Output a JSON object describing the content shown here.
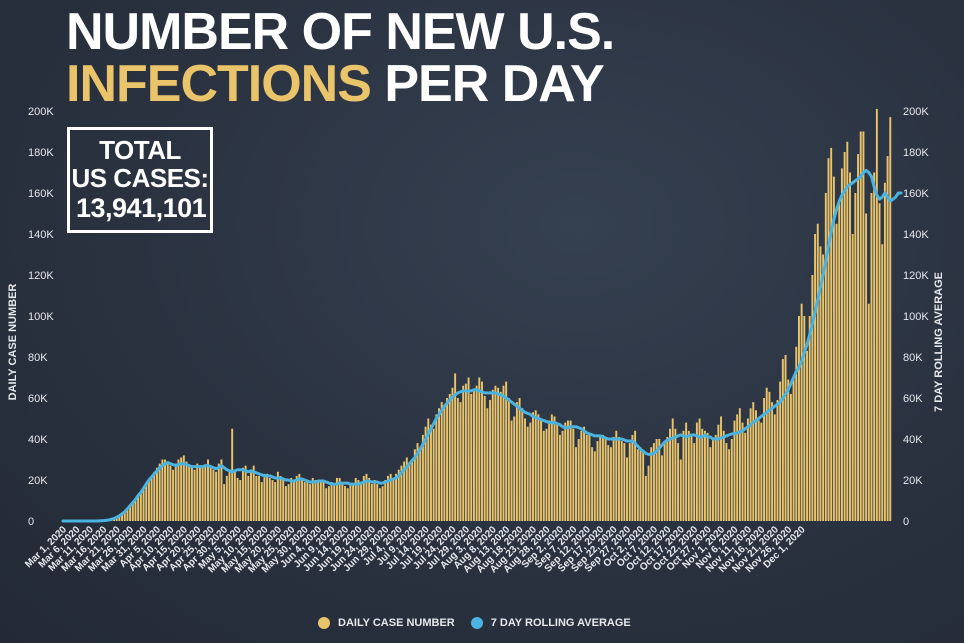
{
  "title": {
    "line1": "NUMBER OF NEW U.S.",
    "line2_highlight": "INFECTIONS",
    "line2_rest": " PER DAY"
  },
  "total_box": {
    "line1": "TOTAL",
    "line2": "US CASES:",
    "value": "13,941,101"
  },
  "colors": {
    "bar": "#e9c46a",
    "line": "#4bb3e0",
    "text": "#e6e8ec",
    "background": "#2a3240"
  },
  "chart_data": {
    "type": "bar",
    "ylabel": "DAILY CASE NUMBER",
    "y2label": "7 DAY ROLLING AVERAGE",
    "ylim": [
      0,
      200000
    ],
    "yticks": [
      "0",
      "20K",
      "40K",
      "60K",
      "80K",
      "100K",
      "120K",
      "140K",
      "160K",
      "180K",
      "200K"
    ],
    "xtick_labels": [
      "Mar 1, 2020",
      "Mar 6, 2020",
      "Mar 11, 2020",
      "Mar 16, 2020",
      "Mar 21, 2020",
      "Mar 26, 2020",
      "Mar 31, 2020",
      "Apr 5, 2020",
      "Apr 10, 2020",
      "Apr 15, 2020",
      "Apr 20, 2020",
      "Apr 25, 2020",
      "Apr 30, 2020",
      "May 5, 2020",
      "May 10, 2020",
      "May 15, 2020",
      "May 20, 2020",
      "May 25, 2020",
      "May 30, 2020",
      "Jun 4, 2020",
      "Jun 9, 2020",
      "Jun 14, 2020",
      "Jun 19, 2020",
      "Jun 24, 2020",
      "Jun 29, 2020",
      "Jul 4, 2020",
      "Jul 9, 2020",
      "Jul 14, 2020",
      "Jul 19, 2020",
      "Jul 24, 2020",
      "Jul 29, 2020",
      "Aug 3, 2020",
      "Aug 8, 2020",
      "Aug 13, 2020",
      "Aug 18, 2020",
      "Aug 23, 2020",
      "Aug 28, 2020",
      "Sep 2, 2020",
      "Sep 7, 2020",
      "Sep 12, 2020",
      "Sep 17, 2020",
      "Sep 22, 2020",
      "Sep 27, 2020",
      "Oct 2, 2020",
      "Oct 7, 2020",
      "Oct 12, 2020",
      "Oct 17, 2020",
      "Oct 22, 2020",
      "Oct 27, 2020",
      "Nov 1, 2020",
      "Nov 6, 2020",
      "Nov 11, 2020",
      "Nov 16, 2020",
      "Nov 21, 2020",
      "Nov 26, 2020",
      "Dec 1, 2020"
    ],
    "x_start": "Mar 1, 2020",
    "legend": "bottom-center",
    "series": [
      {
        "name": "DAILY CASE NUMBER",
        "type": "bar",
        "values": [
          0,
          0,
          0,
          0,
          0,
          0,
          0,
          0,
          0,
          0,
          0,
          0,
          0,
          0,
          100,
          200,
          300,
          500,
          700,
          1000,
          1500,
          2500,
          3500,
          4500,
          6000,
          7500,
          9000,
          11000,
          12000,
          14000,
          16000,
          18000,
          20000,
          22000,
          24000,
          26000,
          28000,
          30000,
          30000,
          28000,
          27000,
          25000,
          28000,
          30000,
          31000,
          32000,
          29000,
          27000,
          26000,
          25000,
          28000,
          27000,
          26000,
          27000,
          30000,
          26000,
          25000,
          24000,
          28000,
          30000,
          18000,
          22000,
          25000,
          45000,
          24000,
          21000,
          20000,
          26000,
          27000,
          22000,
          25000,
          27000,
          22000,
          22000,
          19000,
          23000,
          23000,
          21000,
          20000,
          19000,
          24000,
          22000,
          20000,
          17000,
          18000,
          21000,
          20000,
          22000,
          23000,
          20000,
          19000,
          19000,
          18000,
          21000,
          20000,
          19000,
          20000,
          20000,
          16000,
          17000,
          19000,
          18000,
          21000,
          21000,
          19000,
          17000,
          16000,
          18000,
          18000,
          21000,
          20000,
          18000,
          22000,
          23000,
          21000,
          18000,
          20000,
          18000,
          16000,
          17000,
          20000,
          22000,
          23000,
          21000,
          23000,
          25000,
          27000,
          29000,
          31000,
          28000,
          30000,
          35000,
          38000,
          36000,
          42000,
          46000,
          50000,
          47000,
          45000,
          52000,
          55000,
          58000,
          56000,
          60000,
          62000,
          65000,
          72000,
          60000,
          58000,
          66000,
          67000,
          70000,
          62000,
          64000,
          66000,
          70000,
          68000,
          61000,
          55000,
          59000,
          64000,
          66000,
          65000,
          63000,
          66000,
          68000,
          60000,
          49000,
          51000,
          58000,
          60000,
          55000,
          50000,
          46000,
          48000,
          53000,
          54000,
          52000,
          50000,
          44000,
          45000,
          49000,
          52000,
          51000,
          47000,
          42000,
          44000,
          48000,
          49000,
          49000,
          45000,
          36000,
          40000,
          44000,
          46000,
          42000,
          43000,
          36000,
          34000,
          39000,
          41000,
          42000,
          41000,
          37000,
          36000,
          41000,
          44000,
          41000,
          39000,
          38000,
          31000,
          38000,
          42000,
          44000,
          35000,
          36000,
          34000,
          22000,
          27000,
          36000,
          38000,
          40000,
          40000,
          32000,
          38000,
          41000,
          45000,
          50000,
          45000,
          38000,
          30000,
          44000,
          48000,
          44000,
          42000,
          38000,
          48000,
          50000,
          45000,
          44000,
          43000,
          36000,
          40000,
          42000,
          47000,
          51000,
          44000,
          38000,
          35000,
          40000,
          49000,
          52000,
          55000,
          48000,
          43000,
          50000,
          55000,
          58000,
          54000,
          49000,
          48000,
          60000,
          65000,
          63000,
          58000,
          52000,
          59000,
          68000,
          79000,
          81000,
          69000,
          62000,
          70000,
          85000,
          100000,
          106000,
          100000,
          83000,
          100000,
          120000,
          140000,
          145000,
          134000,
          130000,
          160000,
          177000,
          182000,
          168000,
          145000,
          155000,
          172000,
          180000,
          185000,
          170000,
          140000,
          160000,
          179000,
          190000,
          190000,
          150000,
          106000,
          160000,
          170000,
          201000,
          155000,
          135000,
          165000,
          178000,
          197000
        ],
        "color": "#e9c46a"
      },
      {
        "name": "7 DAY ROLLING AVERAGE",
        "type": "line",
        "values": [
          0,
          0,
          0,
          0,
          0,
          0,
          0,
          0,
          0,
          0,
          0,
          0,
          0,
          0,
          100,
          200,
          300,
          500,
          800,
          1200,
          1800,
          2500,
          3500,
          4500,
          6000,
          7500,
          9000,
          10500,
          12500,
          14000,
          16000,
          18000,
          20000,
          21500,
          23000,
          24500,
          26000,
          27000,
          28000,
          28500,
          28000,
          27500,
          27000,
          27500,
          28000,
          28000,
          27500,
          27000,
          26500,
          26500,
          26500,
          26500,
          26500,
          27000,
          27000,
          26500,
          26000,
          25500,
          26000,
          27000,
          26000,
          25000,
          24500,
          24000,
          24500,
          25000,
          25000,
          25000,
          24500,
          24000,
          24500,
          24000,
          23500,
          23000,
          22500,
          22000,
          22000,
          22000,
          21500,
          21000,
          21000,
          21000,
          20500,
          20000,
          20000,
          19500,
          19500,
          20000,
          20500,
          20500,
          20000,
          19500,
          19000,
          19000,
          19000,
          19500,
          19500,
          19500,
          19000,
          18500,
          18000,
          18000,
          18000,
          18500,
          18500,
          18500,
          18500,
          18000,
          18000,
          18000,
          18000,
          18500,
          19000,
          19500,
          19500,
          19000,
          19000,
          19000,
          18500,
          18500,
          19000,
          19500,
          20000,
          20500,
          21000,
          22000,
          23500,
          25000,
          26500,
          28000,
          29500,
          31000,
          33000,
          35000,
          37500,
          40000,
          42500,
          45000,
          47500,
          50000,
          52000,
          54000,
          56000,
          57500,
          59000,
          60500,
          61500,
          62500,
          63000,
          63500,
          63500,
          63500,
          63500,
          64000,
          64000,
          63500,
          63000,
          62500,
          62500,
          62500,
          62500,
          62500,
          62000,
          61500,
          61000,
          60000,
          59000,
          58000,
          57000,
          56000,
          55000,
          54000,
          53000,
          52500,
          52000,
          51000,
          50500,
          50000,
          49500,
          49000,
          48500,
          48000,
          48000,
          48000,
          47500,
          47000,
          46000,
          45500,
          45500,
          46000,
          46000,
          46000,
          45500,
          45000,
          44000,
          43000,
          42500,
          42000,
          41500,
          41500,
          41500,
          41000,
          40500,
          40000,
          40000,
          40000,
          40000,
          40000,
          40000,
          39500,
          39000,
          39000,
          39000,
          38000,
          36500,
          35000,
          34000,
          33000,
          32500,
          32500,
          33000,
          34000,
          35500,
          37000,
          38500,
          39500,
          40000,
          40500,
          41000,
          41500,
          42000,
          41500,
          41000,
          41500,
          42000,
          42000,
          41500,
          41000,
          41000,
          42000,
          41000,
          41000,
          40000,
          40000,
          40000,
          40500,
          41000,
          41500,
          42000,
          42500,
          42500,
          43000,
          43500,
          44000,
          45000,
          46000,
          47000,
          48000,
          49000,
          50000,
          51000,
          52000,
          53000,
          54000,
          55000,
          56000,
          57000,
          58000,
          60000,
          62000,
          64000,
          67000,
          70000,
          73000,
          75000,
          78000,
          82000,
          86000,
          91000,
          96000,
          102000,
          108000,
          114000,
          120000,
          127000,
          134000,
          141000,
          147000,
          152000,
          156000,
          159000,
          161000,
          163000,
          164000,
          165000,
          166000,
          167000,
          168000,
          170000,
          171000,
          170000,
          168000,
          163000,
          159000,
          157000,
          158000,
          160000,
          158000,
          156000,
          157000,
          158000,
          160000,
          160000
        ],
        "color": "#4bb3e0"
      }
    ]
  },
  "legend": {
    "bars_label": "DAILY CASE NUMBER",
    "line_label": "7 DAY ROLLING AVERAGE"
  }
}
